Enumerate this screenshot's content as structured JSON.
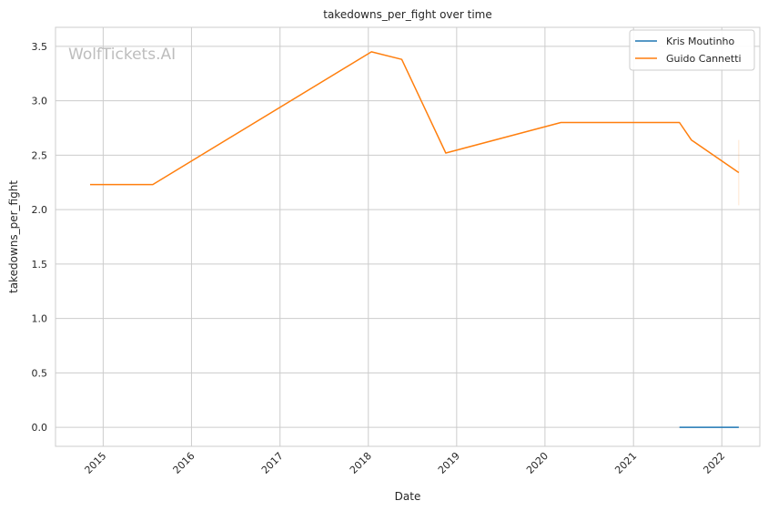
{
  "chart_data": {
    "type": "line",
    "title": "takedowns_per_fight over time",
    "xlabel": "Date",
    "ylabel": "takedowns_per_fight",
    "watermark": "WolfTickets.AI",
    "x_ticks": [
      "2015",
      "2016",
      "2017",
      "2018",
      "2019",
      "2020",
      "2021",
      "2022"
    ],
    "y_ticks": [
      "0.0",
      "0.5",
      "1.0",
      "1.5",
      "2.0",
      "2.5",
      "3.0",
      "3.5"
    ],
    "xlim": [
      "2014-06-18",
      "2022-06-07"
    ],
    "ylim": [
      -0.175,
      3.675
    ],
    "grid": true,
    "legend_position": "top-right",
    "series": [
      {
        "name": "Kris Moutinho",
        "color": "#1f77b4",
        "points": [
          {
            "x": "2021-07-10",
            "y": 0.0
          },
          {
            "x": "2022-03-12",
            "y": 0.0
          }
        ]
      },
      {
        "name": "Guido Cannetti",
        "color": "#ff7f0e",
        "points": [
          {
            "x": "2014-11-08",
            "y": 2.23
          },
          {
            "x": "2015-07-25",
            "y": 2.23
          },
          {
            "x": "2018-01-14",
            "y": 3.45
          },
          {
            "x": "2018-05-19",
            "y": 3.38
          },
          {
            "x": "2018-11-17",
            "y": 2.52
          },
          {
            "x": "2020-03-07",
            "y": 2.8
          },
          {
            "x": "2021-07-10",
            "y": 2.8
          },
          {
            "x": "2021-08-28",
            "y": 2.64
          },
          {
            "x": "2022-03-12",
            "y": 2.34
          }
        ],
        "error_band": {
          "x": "2022-03-12",
          "low": 2.04,
          "high": 2.64
        }
      }
    ]
  }
}
